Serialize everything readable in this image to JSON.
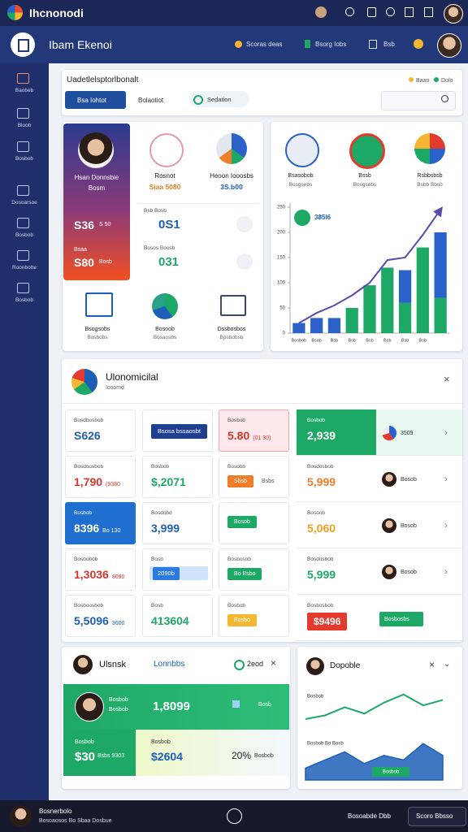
{
  "topbar": {
    "title": "Ihcnonodi"
  },
  "header": {
    "title": "Ibam Ekenoi",
    "items": [
      "Scoras deas",
      "Bsorg Iobs",
      "Bsb"
    ]
  },
  "sidebar": [
    "Baobeb",
    "Bloob",
    "Bosbob",
    "Dosoarsoe",
    "Bosbob",
    "Roonbotte",
    "Bosbob"
  ],
  "toolbar": {
    "title": "Uadetlelsptorlbonalt",
    "legend": [
      "Baao",
      "Dolo"
    ],
    "buttons": [
      "Bsa Iohtot",
      "Bolaotiot",
      "Sedation"
    ]
  },
  "profile": {
    "name": "Hsan Donnsbie",
    "role": "Bosm",
    "stats": [
      {
        "value": "S36",
        "note": "S 50"
      },
      {
        "label": "Bsaa",
        "value": "S80",
        "note": "Bosb"
      }
    ]
  },
  "kpis": [
    {
      "title": "Rosnot",
      "value": "Siaa 5080"
    },
    {
      "title": "Heoon Iooosbs",
      "value": "3S.b00"
    }
  ],
  "mini_stats": [
    {
      "label": "Bsb Bosb",
      "value": "0S1"
    },
    {
      "label": "Bosos Boosb",
      "value": "031"
    }
  ],
  "tiles_a": [
    {
      "title": "Bsogsobs",
      "sub": "Bosbobs"
    },
    {
      "title": "Bosoob",
      "sub": "Bosaosbs"
    },
    {
      "title": "Dssbosbos",
      "sub": "Bpsbobsb"
    }
  ],
  "tiles_b": [
    {
      "title": "Bsasobob",
      "sub": "Bosgsebs"
    },
    {
      "title": "Bssb",
      "sub": "Bosgsebs"
    },
    {
      "title": "Rsbbsbsb",
      "sub": "Bsbb Sbsb"
    }
  ],
  "chart_data": [
    {
      "type": "bar",
      "stacked": true,
      "badge": "385I6",
      "categories": [
        "Bosbob",
        "Bsab",
        "Bsb",
        "Bsb",
        "Bsb",
        "Bsb",
        "Bsb",
        "Bsb",
        null
      ],
      "ylim": [
        0,
        250
      ],
      "yticks": [
        0,
        50,
        100,
        150,
        200,
        250
      ],
      "series": [
        {
          "color": "#1ea866",
          "values": [
            0,
            0,
            0,
            50,
            95,
            130,
            60,
            170,
            70
          ]
        },
        {
          "color": "#2a62c9",
          "values": [
            20,
            30,
            30,
            0,
            0,
            0,
            65,
            0,
            130
          ]
        }
      ],
      "line": {
        "color": "#5b4ba8",
        "values": [
          20,
          40,
          55,
          75,
          100,
          145,
          150,
          195,
          245
        ]
      }
    },
    {
      "type": "line",
      "ylim": [
        0,
        100
      ],
      "labels": {
        "top": "Bosbob",
        "middle": "Bosbob Bo Bosb",
        "tag": "Bosbob"
      },
      "series": [
        {
          "color": "#1ea866",
          "values": [
            67,
            71,
            80,
            73,
            85,
            94,
            82,
            88
          ]
        },
        {
          "color": "#1d5fb8",
          "area": true,
          "values": [
            13,
            22,
            31,
            18,
            27,
            22,
            40,
            27
          ]
        }
      ]
    }
  ],
  "panel": {
    "title": "Ulonomicilal",
    "subtitle": "Iosomd",
    "cells": [
      [
        {
          "label": "Bosdbosbob",
          "value": "S626",
          "color": "#1d5fb8"
        },
        {
          "button": "Bsosa bssaosbt"
        },
        {
          "label": "Bosbob",
          "value": "5.80",
          "note": "(01 30)",
          "color": "#d8342c",
          "style": "pink"
        },
        {
          "label": "Bosbob",
          "value": "2,939",
          "note": "3509",
          "style": "green"
        }
      ],
      [
        {
          "label": "Bosdoosbob",
          "value": "1,790",
          "note": "(9380",
          "color": "#d8342c"
        },
        {
          "label": "Bosbob",
          "value": "$,2071",
          "color": "#1ea866"
        },
        {
          "label": "Bosobb",
          "tag": "Sbsb",
          "tag_color": "#f07d2a",
          "note": "Bsbs"
        },
        {
          "label": "Bosdosbob",
          "value": "5,999",
          "color": "#f07d2a",
          "note": "Bosob"
        }
      ],
      [
        {
          "label": "Bosbob",
          "value": "8396",
          "note": "Bo 130",
          "style": "blue"
        },
        {
          "label": "Bosdobd",
          "value": "3,999",
          "color": "#1d5fb8"
        },
        {
          "tag": "Bosob",
          "tag_color": "#1ea866"
        },
        {
          "label": "Bosoob",
          "value": "5,060",
          "color": "#f0a020",
          "note": "Bosob"
        }
      ],
      [
        {
          "label": "Bosbobob",
          "value": "1,3036",
          "note": "8090",
          "color": "#d8342c"
        },
        {
          "label": "Bosb",
          "bar": "2090b"
        },
        {
          "label": "Bosbosob",
          "tag": "Bo Bsbo",
          "tag_color": "#1ea866"
        },
        {
          "label": "Bosdosbob",
          "value": "5,999",
          "color": "#1ea866",
          "note": "Bosob"
        }
      ],
      [
        {
          "label": "Bosboosbob",
          "value": "5,5096",
          "note": "3600",
          "color": "#1d5fb8"
        },
        {
          "label": "Bosb",
          "value": "413604",
          "color": "#1ea866"
        },
        {
          "label": "Bosbob",
          "tag": "Bosbo",
          "tag_color": "#f5b731"
        },
        {
          "label": "Bosbosbob",
          "tag": "$9496",
          "tag_color": "#e53b2f",
          "note": "Bosbosbs"
        }
      ]
    ]
  },
  "team": {
    "title": "Ulsnsk",
    "link": "Lonnbbs",
    "status": "2eod",
    "member": {
      "name": "Bosbob",
      "role": "Bosbob",
      "value": "1,8099",
      "note": "Bosb"
    },
    "left": {
      "label": "Bosbob",
      "value": "$30",
      "note": "Bsbs 9303"
    },
    "right": {
      "label": "Bosbob",
      "value": "$2604",
      "pct": "20%",
      "note": "Bosbob"
    }
  },
  "trend": {
    "title": "Dopoble"
  },
  "footer": {
    "name": "Bosnerbolo",
    "detail": "Bosoaosos Bo Sbaa Dosbue",
    "right": "Bosoabde Dbb",
    "button": "Scoro Bbsso"
  }
}
